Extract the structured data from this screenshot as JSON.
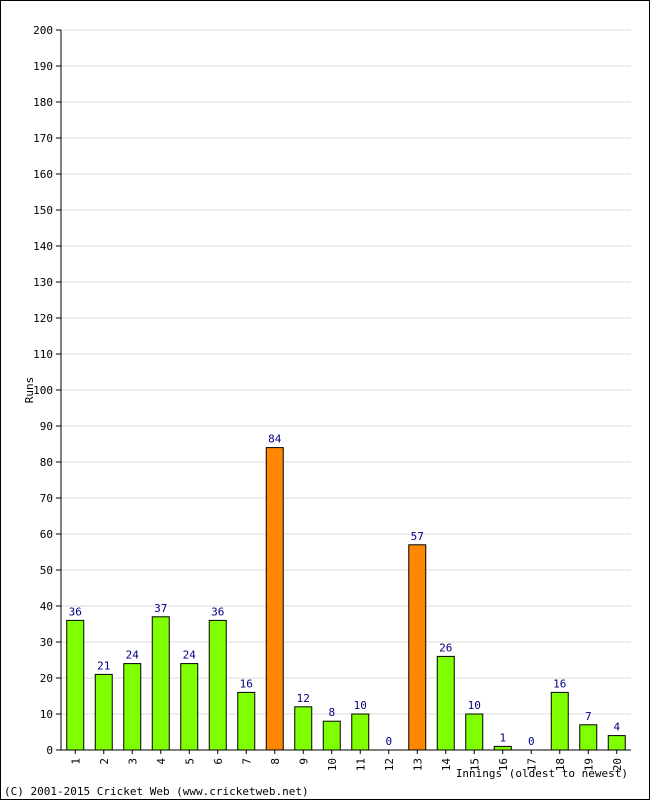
{
  "chart_data": {
    "type": "bar",
    "categories": [
      "1",
      "2",
      "3",
      "4",
      "5",
      "6",
      "7",
      "8",
      "9",
      "10",
      "11",
      "12",
      "13",
      "14",
      "15",
      "16",
      "17",
      "18",
      "19",
      "20"
    ],
    "values": [
      36,
      21,
      24,
      37,
      24,
      36,
      16,
      84,
      12,
      8,
      10,
      0,
      57,
      26,
      10,
      1,
      0,
      16,
      7,
      4
    ],
    "highlighted": [
      false,
      false,
      false,
      false,
      false,
      false,
      false,
      true,
      false,
      false,
      false,
      false,
      true,
      false,
      false,
      false,
      false,
      false,
      false,
      false
    ],
    "title": "",
    "xlabel": "Innings (oldest to newest)",
    "ylabel": "Runs",
    "ylim": [
      0,
      200
    ],
    "yticks": [
      0,
      10,
      20,
      30,
      40,
      50,
      60,
      70,
      80,
      90,
      100,
      110,
      120,
      130,
      140,
      150,
      160,
      170,
      180,
      190,
      200
    ],
    "grid": true,
    "colors": {
      "bar": "#80ff00",
      "bar_highlight": "#ff8800",
      "bar_stroke": "#000000",
      "data_label": "#000080",
      "grid": "#dddddd"
    }
  },
  "footer": {
    "copyright": "(C) 2001-2015 Cricket Web (www.cricketweb.net)"
  }
}
